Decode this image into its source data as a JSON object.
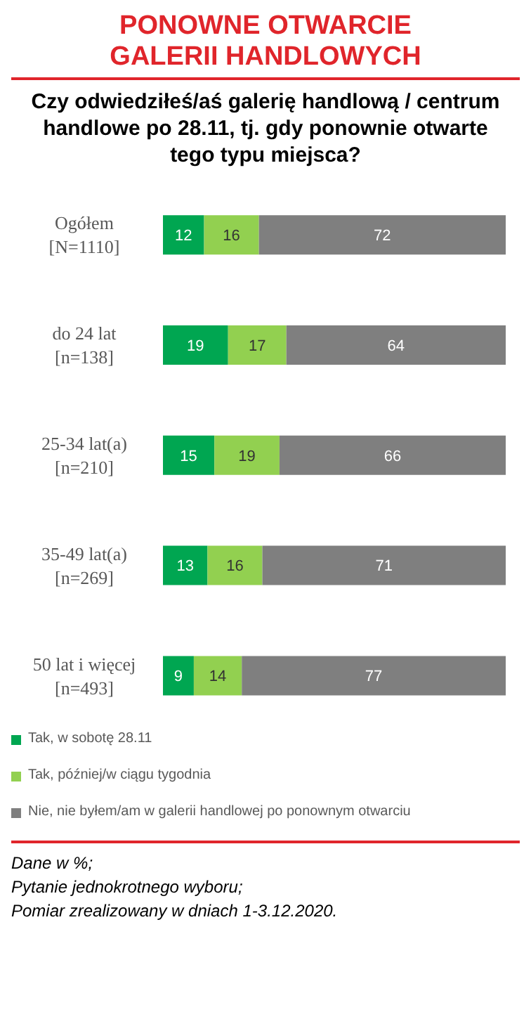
{
  "chart_data": {
    "type": "bar",
    "orientation": "horizontal",
    "stacked": true,
    "data_labels": true,
    "grid": false,
    "legend": "bottom",
    "title": "PONOWNE OTWARCIE\nGALERII HANDLOWYCH",
    "subtitle": "Czy odwiedziłeś/aś galerię handlową / centrum handlowe po 28.11, tj. gdy ponownie otwarte tego typu miejsca?",
    "categories": [
      "Ogółem\n[N=1110]",
      "do 24 lat\n[n=138]",
      "25-34 lat(a)\n[n=210]",
      "35-49 lat(a)\n[n=269]",
      "50 lat i więcej\n[n=493]"
    ],
    "series": [
      {
        "name": "Tak, w sobotę 28.11",
        "color": "#00a651",
        "values": [
          12,
          19,
          15,
          13,
          9
        ]
      },
      {
        "name": "Tak, później/w ciągu tygodnia",
        "color": "#92d050",
        "values": [
          16,
          17,
          19,
          16,
          14
        ]
      },
      {
        "name": "Nie, nie byłem/am w galerii handlowej po ponownym otwarciu",
        "color": "#7f7f7f",
        "values": [
          72,
          64,
          66,
          71,
          77
        ]
      }
    ],
    "annotations": [
      "Dane w %;",
      "Pytanie jednokrotnego wyboru;",
      "Pomiar zrealizowany w dniach 1-3.12.2020."
    ]
  }
}
